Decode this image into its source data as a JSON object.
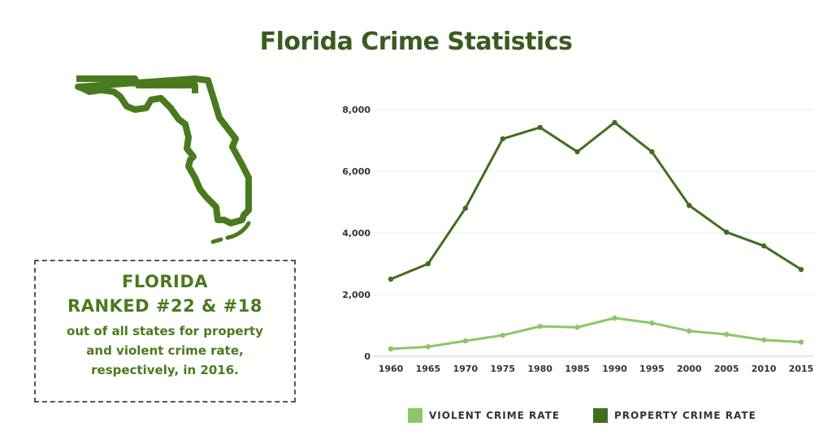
{
  "title": "Florida Crime Statistics",
  "infobox": {
    "line1": "FLORIDA",
    "line2": "RANKED #22 & #18",
    "line3": "out of all states for property",
    "line4": "and violent crime rate,",
    "line5": "respectively, in 2016."
  },
  "colors": {
    "violent": "#8cc66a",
    "property": "#3f6e1d",
    "text": "#4a7a1e"
  },
  "chart_data": {
    "type": "line",
    "title": "Florida Crime Statistics",
    "x": [
      1960,
      1965,
      1970,
      1975,
      1980,
      1985,
      1990,
      1995,
      2000,
      2005,
      2010,
      2015
    ],
    "x_labels": [
      "1960",
      "1965",
      "1970",
      "1975",
      "1980",
      "1985",
      "1990",
      "1995",
      "2000",
      "2005",
      "2010",
      "2015"
    ],
    "ylim": [
      0,
      8000
    ],
    "y_ticks": [
      0,
      2000,
      4000,
      6000,
      8000
    ],
    "y_tick_labels": [
      "0",
      "2,000",
      "4,000",
      "6,000",
      "8,000"
    ],
    "grid": true,
    "legend_position": "bottom",
    "series": [
      {
        "name": "VIOLENT CRIME RATE",
        "values": [
          240,
          310,
          500,
          680,
          970,
          940,
          1240,
          1080,
          820,
          710,
          530,
          460
        ]
      },
      {
        "name": "PROPERTY CRIME RATE",
        "values": [
          2500,
          3000,
          4800,
          7050,
          7420,
          6630,
          7580,
          6630,
          4890,
          4025,
          3580,
          2815
        ]
      }
    ]
  }
}
